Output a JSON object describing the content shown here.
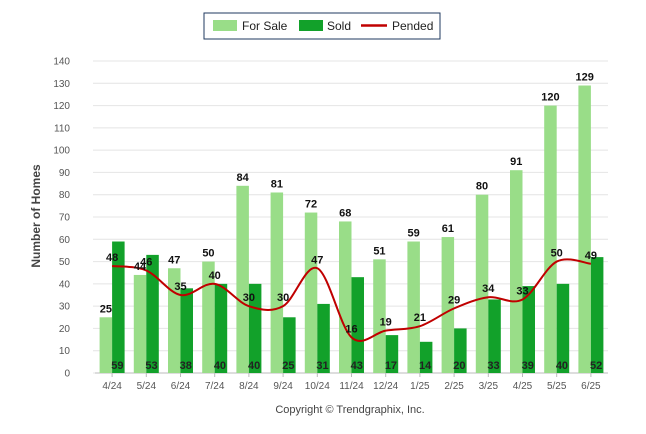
{
  "chart_data": {
    "type": "bar",
    "ylabel": "Number of Homes",
    "xlabel": "",
    "ylim": [
      0,
      140
    ],
    "yticks": [
      0,
      10,
      20,
      30,
      40,
      50,
      60,
      70,
      80,
      90,
      100,
      110,
      120,
      130,
      140
    ],
    "categories": [
      "4/24",
      "5/24",
      "6/24",
      "7/24",
      "8/24",
      "9/24",
      "10/24",
      "11/24",
      "12/24",
      "1/25",
      "2/25",
      "3/25",
      "4/25",
      "5/25",
      "6/25"
    ],
    "series": [
      {
        "name": "For Sale",
        "type": "bar",
        "color": "#99dd88",
        "values": [
          25,
          44,
          47,
          50,
          84,
          81,
          72,
          68,
          51,
          59,
          61,
          80,
          91,
          120,
          129
        ]
      },
      {
        "name": "Sold",
        "type": "bar",
        "color": "#12a12a",
        "values": [
          59,
          53,
          38,
          40,
          40,
          25,
          31,
          43,
          17,
          14,
          20,
          33,
          39,
          40,
          52
        ]
      },
      {
        "name": "Pended",
        "type": "line",
        "color": "#c00000",
        "values": [
          48,
          46,
          35,
          40,
          30,
          30,
          47,
          16,
          19,
          21,
          29,
          34,
          33,
          50,
          49
        ]
      }
    ],
    "legend": {
      "position": "top-center"
    },
    "grid": true
  },
  "footer": {
    "copyright": "Copyright © Trendgraphix, Inc."
  }
}
